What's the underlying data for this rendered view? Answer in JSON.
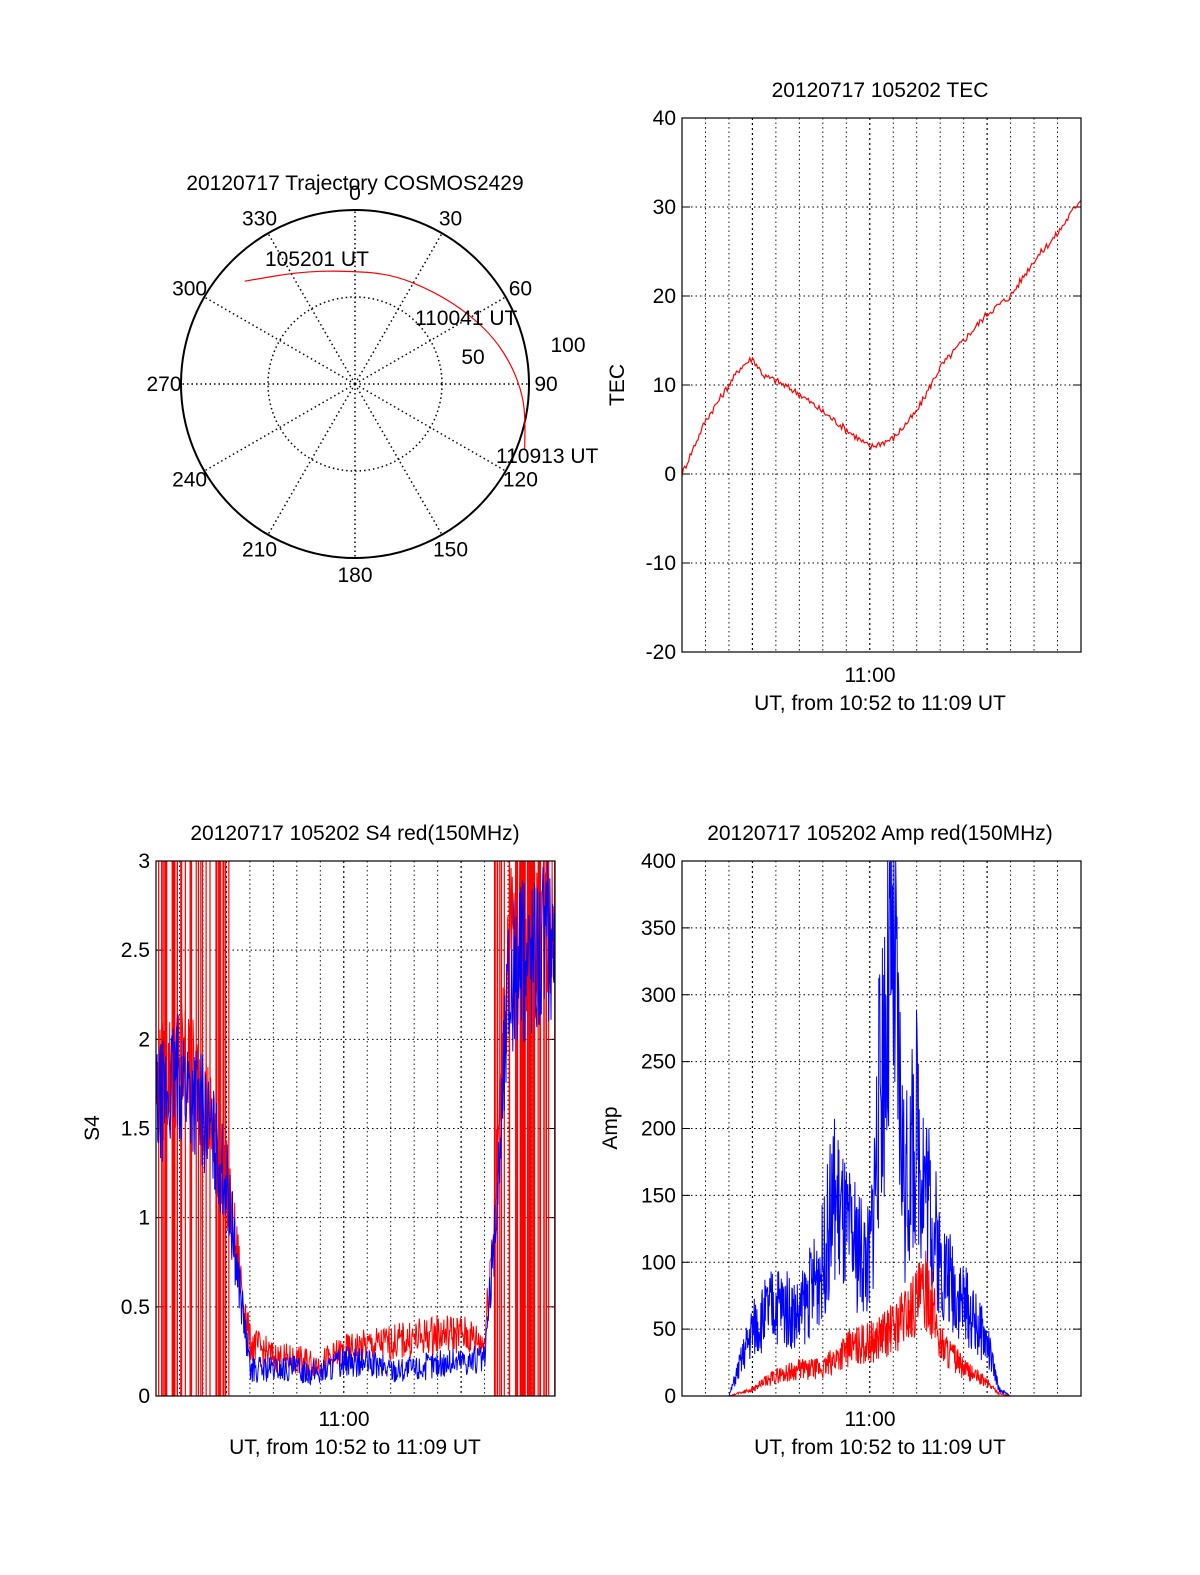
{
  "chart_data": [
    {
      "type": "polar",
      "title": "20120717 Trajectory COSMOS2429",
      "azimuth_labels": [
        "0",
        "30",
        "60",
        "90",
        "120",
        "150",
        "180",
        "210",
        "240",
        "270",
        "300",
        "330"
      ],
      "radial_labels": [
        "50",
        "100"
      ],
      "track": {
        "color": "#ff0000",
        "points": [
          {
            "az": 313,
            "zenith": 78
          },
          {
            "az": 333,
            "zenith": 65
          },
          {
            "az": 354,
            "zenith": 59
          },
          {
            "az": 19,
            "zenith": 60
          },
          {
            "az": 41,
            "zenith": 63
          },
          {
            "az": 58,
            "zenith": 69
          },
          {
            "az": 72,
            "zenith": 76
          },
          {
            "az": 84,
            "zenith": 82
          },
          {
            "az": 94,
            "zenith": 87
          },
          {
            "az": 102,
            "zenith": 90
          },
          {
            "az": 111,
            "zenith": 94
          }
        ]
      },
      "annotations": [
        "105201 UT",
        "110041 UT",
        "110913 UT"
      ]
    },
    {
      "type": "line",
      "title": "20120717 105202 TEC",
      "ylabel": "TEC",
      "xlabel": "UT, from 10:52 to 11:09 UT",
      "x_tick_label": "11:00",
      "xlim": [
        "10:52",
        "11:09"
      ],
      "ylim": [
        -20,
        40
      ],
      "y_ticks": [
        "-20",
        "-10",
        "0",
        "10",
        "20",
        "30",
        "40"
      ],
      "grid": true,
      "series": [
        {
          "color": "#ff0000",
          "x": [
            "10:52",
            "10:53",
            "10:54",
            "10:54:30",
            "10:55",
            "10:55:30",
            "10:56",
            "10:57",
            "10:58",
            "10:59",
            "11:00",
            "11:01",
            "11:02",
            "11:03",
            "11:04",
            "11:05",
            "11:06",
            "11:07",
            "11:08",
            "11:09"
          ],
          "values": [
            0,
            6,
            10,
            12,
            13,
            11,
            10.5,
            9,
            7,
            5,
            3,
            4,
            7,
            12,
            15,
            18,
            20,
            24,
            27,
            31
          ]
        }
      ]
    },
    {
      "type": "line",
      "title": "20120717 105202 S4 red(150MHz)",
      "ylabel": "S4",
      "xlabel": "UT, from 10:52 to 11:09 UT",
      "x_tick_label": "11:00",
      "xlim": [
        "10:52",
        "11:09"
      ],
      "ylim": [
        0,
        3
      ],
      "y_ticks": [
        "0",
        "0.5",
        "1",
        "1.5",
        "2",
        "2.5",
        "3"
      ],
      "grid": true,
      "series": [
        {
          "color": "#ff0000",
          "x": [
            "10:52",
            "10:53",
            "10:54",
            "10:55",
            "10:56",
            "10:57",
            "10:58",
            "10:59",
            "11:00",
            "11:01",
            "11:02",
            "11:03",
            "11:04",
            "11:05",
            "11:06",
            "11:06:30",
            "11:07",
            "11:08",
            "11:09"
          ],
          "values": [
            1.7,
            1.9,
            1.7,
            1.2,
            0.3,
            0.22,
            0.2,
            0.18,
            0.25,
            0.28,
            0.3,
            0.32,
            0.35,
            0.35,
            0.3,
            1.2,
            2.5,
            2.6,
            2.7
          ]
        },
        {
          "color": "#0000ff",
          "x": [
            "10:52",
            "10:53",
            "10:54",
            "10:55",
            "10:56",
            "10:57",
            "10:58",
            "10:59",
            "11:00",
            "11:01",
            "11:02",
            "11:03",
            "11:04",
            "11:05",
            "11:06",
            "11:06:30",
            "11:07",
            "11:08",
            "11:09"
          ],
          "values": [
            1.6,
            1.8,
            1.6,
            1.2,
            0.15,
            0.15,
            0.15,
            0.13,
            0.2,
            0.18,
            0.15,
            0.15,
            0.18,
            0.2,
            0.2,
            1.0,
            2.3,
            2.5,
            2.6
          ]
        }
      ]
    },
    {
      "type": "line",
      "title": "20120717 105202 Amp red(150MHz)",
      "ylabel": "Amp",
      "xlabel": "UT, from 10:52 to 11:09 UT",
      "x_tick_label": "11:00",
      "xlim": [
        "10:52",
        "11:09"
      ],
      "ylim": [
        0,
        400
      ],
      "y_ticks": [
        "0",
        "50",
        "100",
        "150",
        "200",
        "250",
        "300",
        "350",
        "400"
      ],
      "grid": true,
      "series": [
        {
          "color": "#0000ff",
          "x": [
            "10:52",
            "10:54",
            "10:55",
            "10:56",
            "10:57",
            "10:58",
            "10:58:30",
            "10:59",
            "11:00",
            "11:00:30",
            "11:01",
            "11:01:30",
            "11:02",
            "11:03",
            "11:04",
            "11:05",
            "11:05:30",
            "11:06",
            "11:07",
            "11:08",
            "11:09"
          ],
          "values": [
            0,
            0,
            50,
            70,
            60,
            100,
            150,
            120,
            100,
            250,
            320,
            150,
            200,
            100,
            70,
            40,
            5,
            0,
            0,
            0,
            0
          ]
        },
        {
          "color": "#ff0000",
          "x": [
            "10:52",
            "10:54",
            "10:55",
            "10:56",
            "10:57",
            "10:58",
            "10:59",
            "11:00",
            "11:01",
            "11:02",
            "11:02:30",
            "11:03",
            "11:04",
            "11:05",
            "11:05:30",
            "11:06",
            "11:07",
            "11:08",
            "11:09"
          ],
          "values": [
            0,
            0,
            5,
            15,
            20,
            20,
            35,
            40,
            50,
            70,
            80,
            40,
            20,
            10,
            2,
            0,
            0,
            0,
            0
          ]
        }
      ]
    }
  ]
}
